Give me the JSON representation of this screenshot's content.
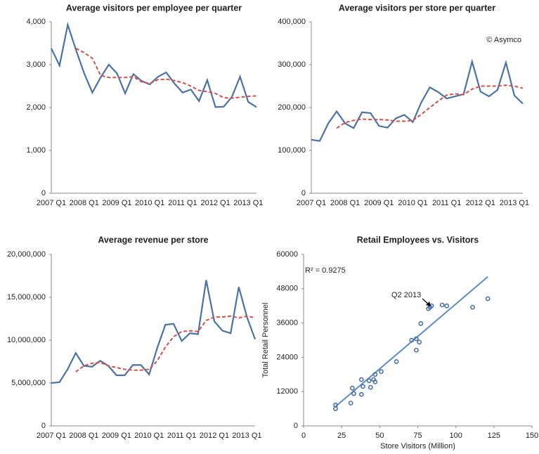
{
  "chart_data": [
    {
      "type": "line",
      "title": "Average visitors per employee per quarter",
      "categories": [
        "2007 Q1",
        null,
        null,
        null,
        "2008 Q1",
        null,
        null,
        null,
        "2009 Q1",
        null,
        null,
        null,
        "2010 Q1",
        null,
        null,
        null,
        "2011 Q1",
        null,
        null,
        null,
        "2012 Q1",
        null,
        null,
        null,
        "2013 Q1",
        null
      ],
      "series": [
        {
          "color": "#4a72a6",
          "style": "solid",
          "values": [
            3380,
            2980,
            3930,
            3350,
            2800,
            2350,
            2700,
            3000,
            2800,
            2330,
            2780,
            2620,
            2540,
            2720,
            2820,
            2560,
            2350,
            2420,
            2150,
            2640,
            2010,
            2020,
            2250,
            2720,
            2130,
            2010
          ]
        },
        {
          "color": "#d6504a",
          "style": "dashed",
          "values": [
            null,
            null,
            null,
            3380,
            3280,
            3150,
            2750,
            2700,
            2700,
            2700,
            2720,
            2600,
            2560,
            2650,
            2660,
            2630,
            2580,
            2500,
            2400,
            2370,
            2330,
            2230,
            2220,
            2240,
            2260,
            2270
          ]
        }
      ],
      "ylim": [
        0,
        4000
      ],
      "yticks": [
        0,
        {
          "value": 1000,
          "label": "1,000"
        },
        {
          "value": 2000,
          "label": "2,000"
        },
        {
          "value": 3000,
          "label": "3,000"
        },
        {
          "value": 4000,
          "label": "4,000"
        }
      ],
      "grid": false
    },
    {
      "type": "line",
      "title": "Average visitors per store per quarter",
      "annotation": "© Asymco",
      "categories": [
        "2007 Q1",
        null,
        null,
        null,
        "2008 Q1",
        null,
        null,
        null,
        "2009 Q1",
        null,
        null,
        null,
        "2010 Q1",
        null,
        null,
        null,
        "2011 Q1",
        null,
        null,
        null,
        "2012 Q1",
        null,
        null,
        null,
        "2013 Q1",
        null
      ],
      "series": [
        {
          "color": "#4a72a6",
          "style": "solid",
          "values": [
            125000,
            122000,
            163000,
            191000,
            163000,
            152000,
            189000,
            187000,
            157000,
            153000,
            175000,
            183000,
            166000,
            212000,
            247000,
            236000,
            221000,
            226000,
            231000,
            307000,
            237000,
            226000,
            241000,
            305000,
            228000,
            209000
          ]
        },
        {
          "color": "#d6504a",
          "style": "dashed",
          "values": [
            null,
            null,
            null,
            152000,
            165000,
            170000,
            173000,
            172000,
            172000,
            171000,
            168000,
            168000,
            170000,
            184000,
            200000,
            215000,
            229000,
            232000,
            230000,
            243000,
            250000,
            250000,
            250000,
            252000,
            250000,
            245000
          ]
        }
      ],
      "ylim": [
        0,
        400000
      ],
      "yticks": [
        0,
        {
          "value": 100000,
          "label": "100,000"
        },
        {
          "value": 200000,
          "label": "200,000"
        },
        {
          "value": 300000,
          "label": "300,000"
        },
        {
          "value": 400000,
          "label": "400,000"
        }
      ],
      "grid": false
    },
    {
      "type": "line",
      "title": "Average revenue per store",
      "categories": [
        "2007 Q1",
        null,
        null,
        null,
        "2008 Q1",
        null,
        null,
        null,
        "2009 Q1",
        null,
        null,
        null,
        "2010 Q1",
        null,
        null,
        null,
        "2011 Q1",
        null,
        null,
        null,
        "2012 Q1",
        null,
        null,
        null,
        "2013 Q1",
        null
      ],
      "series": [
        {
          "color": "#4a72a6",
          "style": "solid",
          "values": [
            5000000,
            5100000,
            6600000,
            8500000,
            7000000,
            6900000,
            7600000,
            7000000,
            5900000,
            5900000,
            7100000,
            7100000,
            6000000,
            9100000,
            11800000,
            11900000,
            9900000,
            10800000,
            10700000,
            17000000,
            12200000,
            11100000,
            10800000,
            16200000,
            12700000,
            10100000
          ]
        },
        {
          "color": "#d6504a",
          "style": "dashed",
          "values": [
            null,
            null,
            null,
            6300000,
            7000000,
            7300000,
            7400000,
            7000000,
            6800000,
            6600000,
            6500000,
            6500000,
            6600000,
            7600000,
            9200000,
            10400000,
            11000000,
            11100000,
            11000000,
            12300000,
            12700000,
            12700000,
            12800000,
            12600000,
            12800000,
            12600000
          ]
        }
      ],
      "ylim": [
        0,
        20000000
      ],
      "yticks": [
        0,
        {
          "value": 5000000,
          "label": "5,000,000"
        },
        {
          "value": 10000000,
          "label": "10,000,000"
        },
        {
          "value": 15000000,
          "label": "15,000,000"
        },
        {
          "value": 20000000,
          "label": "20,000,000"
        }
      ],
      "grid": false
    },
    {
      "type": "scatter",
      "title": "Retail Employees vs. Visitors",
      "x_label": "Store Visitors (Million)",
      "y_label": "Total Retail Personnel",
      "annotations": [
        "R² = 0.9275",
        "Q2 2013"
      ],
      "color": "#4a72a6",
      "trend_color": "#5b8cc6",
      "x": [
        21,
        21,
        31,
        32,
        33,
        38,
        38,
        39,
        43,
        44,
        46,
        47,
        47,
        51,
        61,
        71,
        74,
        74,
        76,
        77,
        82,
        83,
        84,
        91,
        94,
        111,
        121
      ],
      "y": [
        6000,
        7300,
        8000,
        13200,
        11300,
        11000,
        16200,
        13800,
        15800,
        13500,
        16200,
        15400,
        18000,
        19000,
        22500,
        30000,
        30500,
        26500,
        29300,
        35800,
        41000,
        41500,
        42000,
        42300,
        42000,
        41500,
        44500
      ],
      "trendline": {
        "x": [
          21,
          121
        ],
        "y": [
          6800,
          52200
        ]
      },
      "xlim": [
        0,
        150
      ],
      "xticks": [
        0,
        25,
        50,
        75,
        100,
        125,
        150
      ],
      "ylim": [
        0,
        60000
      ],
      "yticks": [
        0,
        12000,
        24000,
        36000,
        48000,
        60000
      ],
      "grid": false
    }
  ]
}
